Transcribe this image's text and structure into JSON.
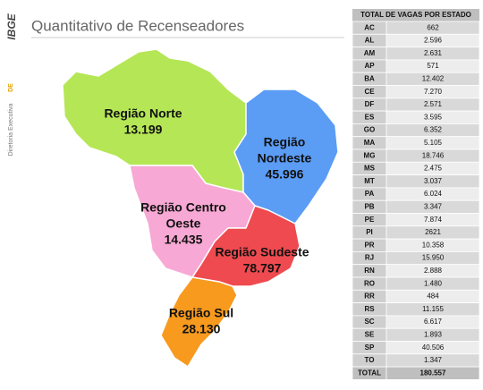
{
  "title": "Quantitativo de Recenseadores",
  "sidebar": {
    "logo": "IBGE",
    "unit": "Diretoria Executiva",
    "code": "DE"
  },
  "map": {
    "regions": [
      {
        "label": [
          "Região Norte"
        ],
        "value": "13.199"
      },
      {
        "label": [
          "Região",
          "Nordeste"
        ],
        "value": "45.996"
      },
      {
        "label": [
          "Região Centro",
          "Oeste"
        ],
        "value": "14.435"
      },
      {
        "label": [
          "Região Sudeste"
        ],
        "value": "78.797"
      },
      {
        "label": [
          "Região Sul"
        ],
        "value": "28.130"
      }
    ]
  },
  "table": {
    "header": "TOTAL DE VAGAS POR ESTADO",
    "rows": [
      [
        "AC",
        "662"
      ],
      [
        "AL",
        "2.596"
      ],
      [
        "AM",
        "2.631"
      ],
      [
        "AP",
        "571"
      ],
      [
        "BA",
        "12.402"
      ],
      [
        "CE",
        "7.270"
      ],
      [
        "DF",
        "2.571"
      ],
      [
        "ES",
        "3.595"
      ],
      [
        "GO",
        "6.352"
      ],
      [
        "MA",
        "5.105"
      ],
      [
        "MG",
        "18.746"
      ],
      [
        "MS",
        "2.475"
      ],
      [
        "MT",
        "3.037"
      ],
      [
        "PA",
        "6.024"
      ],
      [
        "PB",
        "3.347"
      ],
      [
        "PE",
        "7.874"
      ],
      [
        "PI",
        "2621"
      ],
      [
        "PR",
        "10.358"
      ],
      [
        "RJ",
        "15.950"
      ],
      [
        "RN",
        "2.888"
      ],
      [
        "RO",
        "1.480"
      ],
      [
        "RR",
        "484"
      ],
      [
        "RS",
        "11.155"
      ],
      [
        "SC",
        "6.617"
      ],
      [
        "SE",
        "1.893"
      ],
      [
        "SP",
        "40.506"
      ],
      [
        "TO",
        "1.347"
      ]
    ],
    "total": [
      "TOTAL",
      "180.557"
    ]
  }
}
